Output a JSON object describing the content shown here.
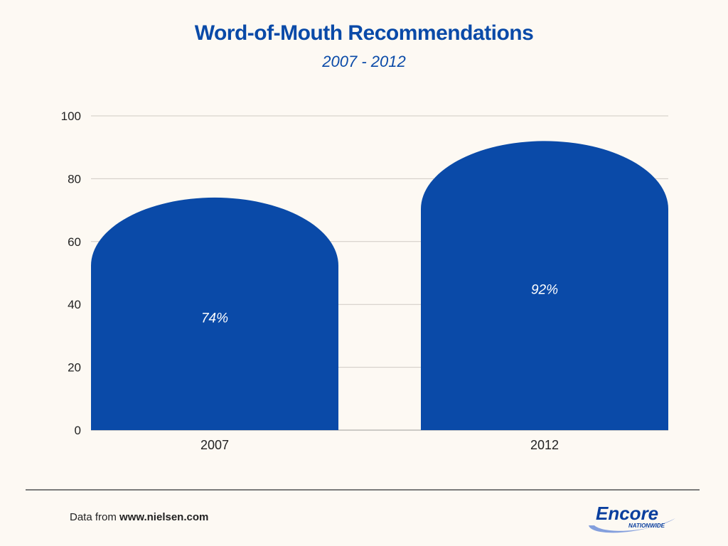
{
  "title": "Word-of-Mouth Recommendations",
  "subtitle": "2007 - 2012",
  "source": {
    "prefix": "Data from ",
    "url": "www.nielsen.com"
  },
  "logo": {
    "name": "Encore",
    "tagline": "NATIONWIDE",
    "colors": {
      "primary": "#0a3f9e",
      "swoosh": "#6f8fd8"
    }
  },
  "chart_data": {
    "type": "bar",
    "categories": [
      "2007",
      "2012"
    ],
    "values": [
      74,
      92
    ],
    "data_labels": [
      "74%",
      "92%"
    ],
    "title": "Word-of-Mouth Recommendations",
    "subtitle": "2007 - 2012",
    "xlabel": "",
    "ylabel": "",
    "ylim": [
      0,
      100
    ],
    "yticks": [
      0,
      20,
      40,
      60,
      80,
      100
    ],
    "grid": true,
    "bar_shape": "rounded-top",
    "bar_color": "#0a4aa8"
  }
}
